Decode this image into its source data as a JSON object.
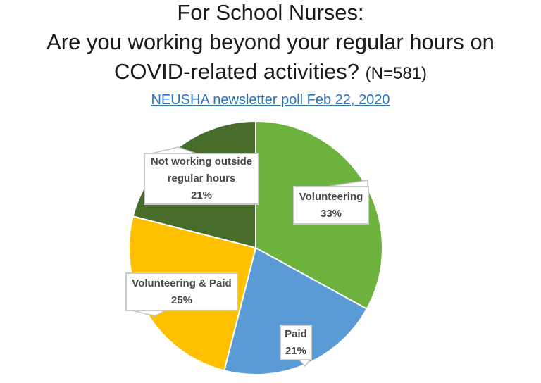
{
  "title": {
    "line1": "For School Nurses:",
    "line2": "Are you working beyond your regular hours on",
    "line3_main": "COVID-related activities? ",
    "line3_note": "(N=581)"
  },
  "subtitle_link": {
    "text": "NEUSHA newsletter poll Feb 22, 2020",
    "color": "#2373c8"
  },
  "chart_data": {
    "type": "pie",
    "title": "For School Nurses: Are you working beyond your regular hours on COVID-related activities? (N=581)",
    "sample_size": 581,
    "source": "NEUSHA newsletter poll Feb 22, 2020",
    "start_angle_deg": 0,
    "direction": "clockwise",
    "slices": [
      {
        "label": "Volunteering",
        "value_pct": 33,
        "pct_label": "33%",
        "color": "#6cb23c"
      },
      {
        "label": "Paid",
        "value_pct": 21,
        "pct_label": "21%",
        "color": "#5b9bd5"
      },
      {
        "label": "Volunteering & Paid",
        "value_pct": 25,
        "pct_label": "25%",
        "color": "#ffc000"
      },
      {
        "label": "Not working outside regular hours",
        "value_pct": 21,
        "pct_label": "21%",
        "color": "#486c29"
      }
    ],
    "callouts": {
      "volunteering": {
        "lines": [
          "Volunteering",
          "33%"
        ]
      },
      "paid": {
        "lines": [
          "Paid",
          "21%"
        ]
      },
      "volpaid": {
        "lines": [
          "Volunteering & Paid",
          "25%"
        ]
      },
      "notworking": {
        "lines": [
          "Not working outside",
          "regular hours",
          "21%"
        ]
      }
    }
  }
}
